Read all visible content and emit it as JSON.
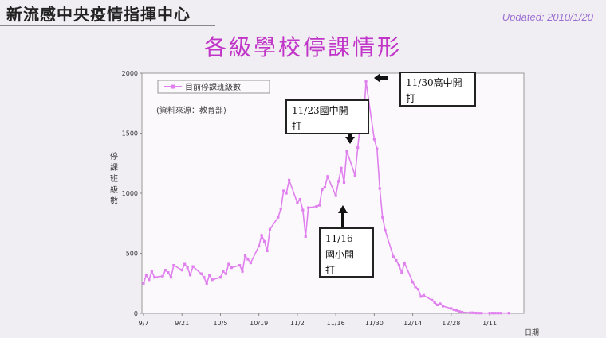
{
  "header": {
    "org": "新流感中央疫情指揮中心",
    "updated": "Updated: 2010/1/20",
    "title": "各級學校停課情形"
  },
  "chart_data": {
    "type": "line",
    "title": "各級學校停課情形",
    "ylabel": "停課班級數",
    "xlabel": "日期",
    "ylim": [
      0,
      2000
    ],
    "yticks": [
      0,
      500,
      1000,
      1500,
      2000
    ],
    "xticks": [
      "9/7",
      "9/21",
      "10/5",
      "10/19",
      "11/2",
      "11/16",
      "11/30",
      "12/14",
      "12/28",
      "1/11"
    ],
    "legend": "目前停課班級數",
    "source_note": "(資料來源：教育部)",
    "series_color": "#e080ee",
    "series": [
      {
        "name": "目前停課班級數",
        "x": [
          "9/7",
          "9/8",
          "9/9",
          "9/10",
          "9/11",
          "9/14",
          "9/15",
          "9/16",
          "9/17",
          "9/18",
          "9/21",
          "9/22",
          "9/23",
          "9/24",
          "9/25",
          "9/28",
          "9/29",
          "9/30",
          "10/1",
          "10/2",
          "10/5",
          "10/6",
          "10/7",
          "10/8",
          "10/9",
          "10/12",
          "10/13",
          "10/14",
          "10/15",
          "10/16",
          "10/19",
          "10/20",
          "10/21",
          "10/22",
          "10/23",
          "10/26",
          "10/27",
          "10/28",
          "10/29",
          "10/30",
          "11/2",
          "11/3",
          "11/4",
          "11/5",
          "11/6",
          "11/9",
          "11/10",
          "11/11",
          "11/12",
          "11/13",
          "11/16",
          "11/17",
          "11/18",
          "11/19",
          "11/20",
          "11/23",
          "11/24",
          "11/25",
          "11/26",
          "11/27",
          "11/30",
          "12/1",
          "12/2",
          "12/3",
          "12/4",
          "12/7",
          "12/8",
          "12/9",
          "12/10",
          "12/11",
          "12/14",
          "12/15",
          "12/16",
          "12/17",
          "12/18",
          "12/21",
          "12/22",
          "12/23",
          "12/24",
          "12/25",
          "12/28",
          "12/29",
          "12/30",
          "12/31",
          "1/1",
          "1/4",
          "1/5",
          "1/6",
          "1/7",
          "1/8",
          "1/11",
          "1/12",
          "1/13",
          "1/14",
          "1/15",
          "1/18"
        ],
        "values": [
          250,
          320,
          280,
          350,
          300,
          310,
          360,
          340,
          300,
          400,
          360,
          410,
          380,
          320,
          390,
          330,
          300,
          250,
          320,
          280,
          300,
          350,
          330,
          410,
          380,
          400,
          350,
          480,
          450,
          420,
          560,
          650,
          600,
          520,
          700,
          800,
          870,
          1020,
          1000,
          1110,
          920,
          950,
          860,
          640,
          880,
          890,
          900,
          1030,
          1050,
          1140,
          980,
          1100,
          1210,
          1090,
          1350,
          1150,
          1380,
          1600,
          1570,
          1930,
          1450,
          1370,
          1040,
          800,
          690,
          470,
          440,
          400,
          340,
          420,
          260,
          220,
          200,
          140,
          150,
          110,
          90,
          70,
          80,
          60,
          40,
          30,
          25,
          15,
          10,
          5,
          5,
          3,
          2,
          2,
          2,
          2,
          2,
          2,
          2,
          2
        ]
      }
    ]
  },
  "annotations": [
    {
      "id": "ann-1123",
      "text1": "11/23國中開",
      "text2": "打"
    },
    {
      "id": "ann-1130",
      "text1": "11/30高中開",
      "text2": "打"
    },
    {
      "id": "ann-1116",
      "text1": "11/16",
      "text2": "國小開",
      "text3": "打"
    }
  ]
}
